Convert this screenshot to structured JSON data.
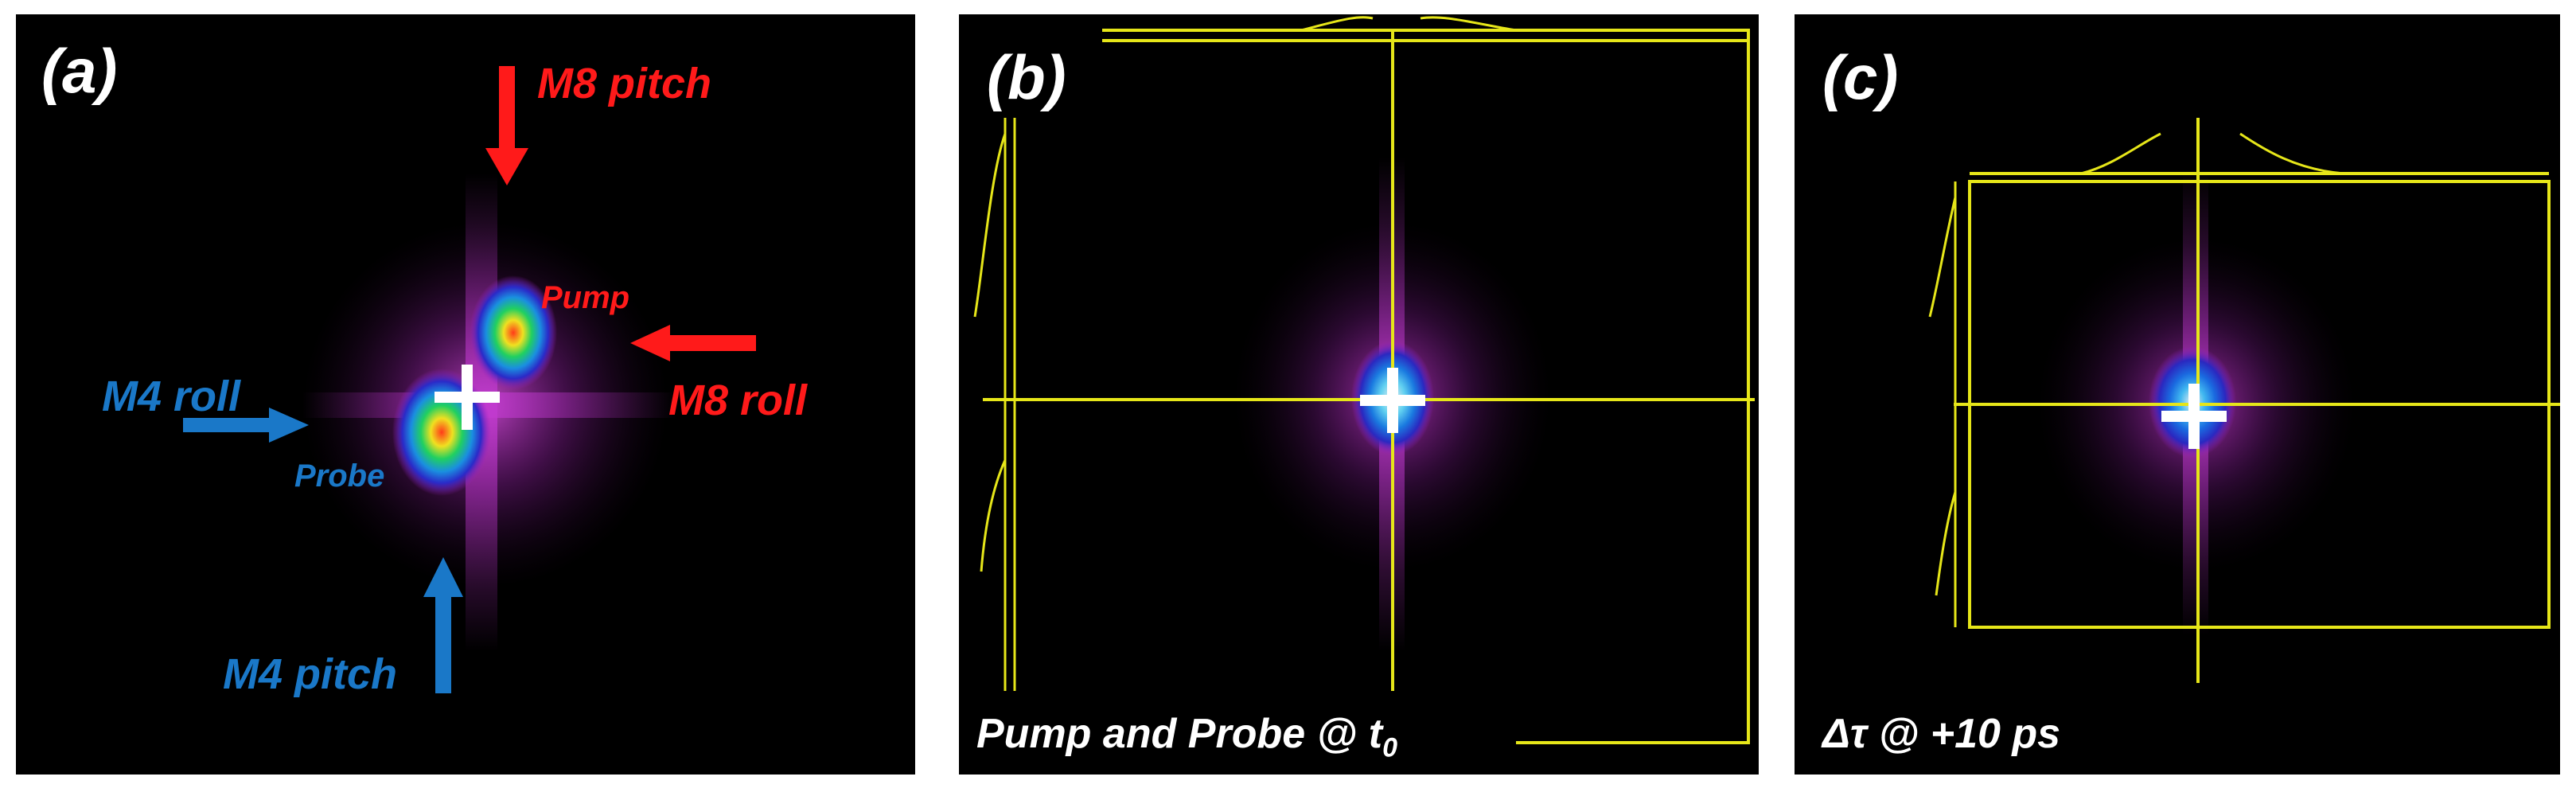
{
  "panel_a": {
    "label": "(a)",
    "annotations": {
      "m8_pitch": "M8 pitch",
      "m8_roll": "M8 roll",
      "m4_roll": "M4 roll",
      "m4_pitch": "M4 pitch",
      "pump": "Pump",
      "probe": "Probe"
    }
  },
  "panel_b": {
    "label": "(b)",
    "caption_main": "Pump and Probe @ t",
    "caption_sub": "0"
  },
  "panel_c": {
    "label": "(c)",
    "caption": "Δτ @ +10 ps"
  },
  "colors": {
    "background": "#000000",
    "crosshair": "#e6e619",
    "marker": "#ffffff",
    "annotation_red": "#ff1a1a",
    "annotation_blue": "#1a78c8"
  }
}
